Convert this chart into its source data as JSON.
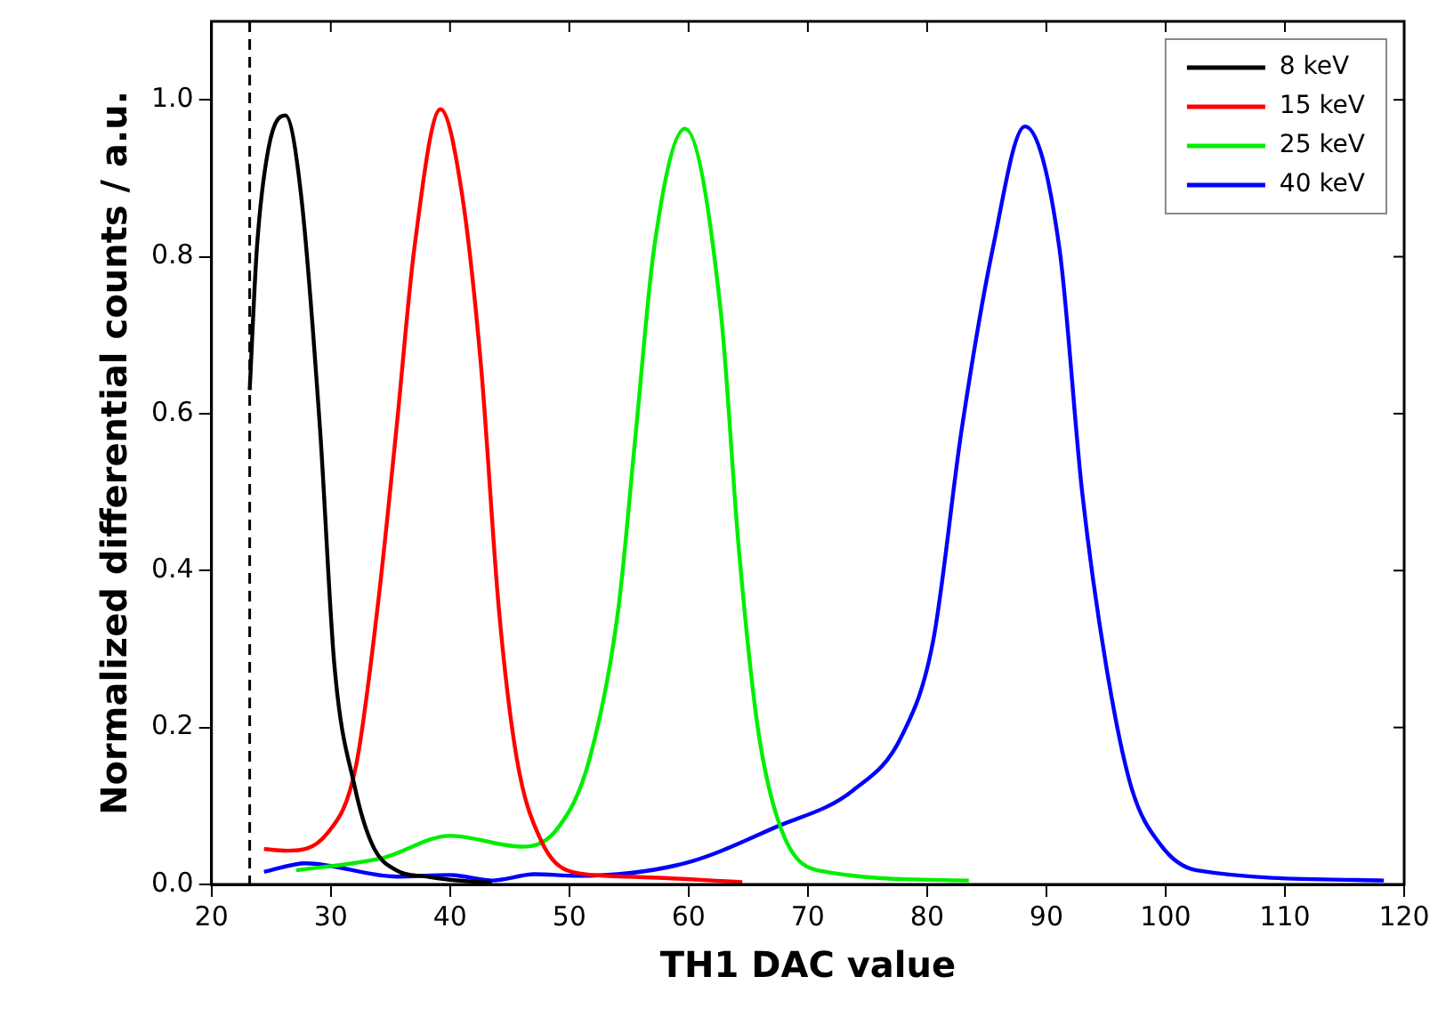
{
  "chart_data": {
    "type": "line",
    "xlabel": "TH1 DAC value",
    "ylabel": "Normalized differential counts / a.u.",
    "xlim": [
      20,
      120
    ],
    "ylim": [
      0,
      1.1
    ],
    "xticks": [
      20,
      30,
      40,
      50,
      60,
      70,
      80,
      90,
      100,
      110,
      120
    ],
    "yticks": [
      {
        "value": 0,
        "label": "0.0"
      },
      {
        "value": 0.2,
        "label": "0.2"
      },
      {
        "value": 0.4,
        "label": "0.4"
      },
      {
        "value": 0.6,
        "label": "0.6"
      },
      {
        "value": 0.8,
        "label": "0.8"
      },
      {
        "value": 1,
        "label": "1.0"
      }
    ],
    "grid": false,
    "legend": "top right",
    "marker": "none",
    "line_style": "solid",
    "ref_lines": [
      {
        "axis": "x",
        "value": 23.2,
        "color": "#000000",
        "line_style": "dashed"
      }
    ],
    "series": [
      {
        "name": "8 keV",
        "color": "#000000",
        "x": [
          23.2,
          23.8,
          24.8,
          26.2,
          27.5,
          29.1,
          30.3,
          32.0,
          33.5,
          35.5,
          38,
          40,
          43.5
        ],
        "values": [
          0.63,
          0.81,
          0.94,
          0.98,
          0.88,
          0.58,
          0.28,
          0.125,
          0.05,
          0.018,
          0.01,
          0.006,
          0.002
        ]
      },
      {
        "name": "15 keV",
        "color": "#ff0000",
        "x": [
          24.4,
          26.3,
          29.7,
          32.1,
          33.9,
          35.5,
          37.0,
          39.2,
          41.0,
          42.6,
          44.1,
          45.6,
          47.6,
          50.2,
          55,
          64.5
        ],
        "values": [
          0.045,
          0.043,
          0.065,
          0.15,
          0.35,
          0.58,
          0.81,
          0.988,
          0.88,
          0.66,
          0.35,
          0.16,
          0.057,
          0.016,
          0.01,
          0.003
        ]
      },
      {
        "name": "25 keV",
        "color": "#00ee00",
        "x": [
          27.1,
          34.4,
          40.0,
          46.1,
          49.1,
          51.7,
          54.1,
          55.6,
          57.1,
          59.7,
          62.7,
          64.2,
          65.8,
          67.7,
          70.8,
          83.5
        ],
        "values": [
          0.018,
          0.034,
          0.062,
          0.048,
          0.073,
          0.16,
          0.35,
          0.58,
          0.81,
          0.963,
          0.73,
          0.43,
          0.2,
          0.073,
          0.018,
          0.005
        ]
      },
      {
        "name": "40 keV",
        "color": "#0000ff",
        "x": [
          24.4,
          27.9,
          35.5,
          40.0,
          43.5,
          47.1,
          50.6,
          59.7,
          67.3,
          73.8,
          77.9,
          80.5,
          82.9,
          85.5,
          88.2,
          91.1,
          93.0,
          95.0,
          97.1,
          99.6,
          102.6,
          118.3
        ],
        "values": [
          0.016,
          0.027,
          0.01,
          0.012,
          0.005,
          0.013,
          0.011,
          0.027,
          0.073,
          0.12,
          0.19,
          0.31,
          0.58,
          0.81,
          0.966,
          0.81,
          0.5,
          0.28,
          0.125,
          0.05,
          0.018,
          0.005
        ]
      }
    ]
  }
}
